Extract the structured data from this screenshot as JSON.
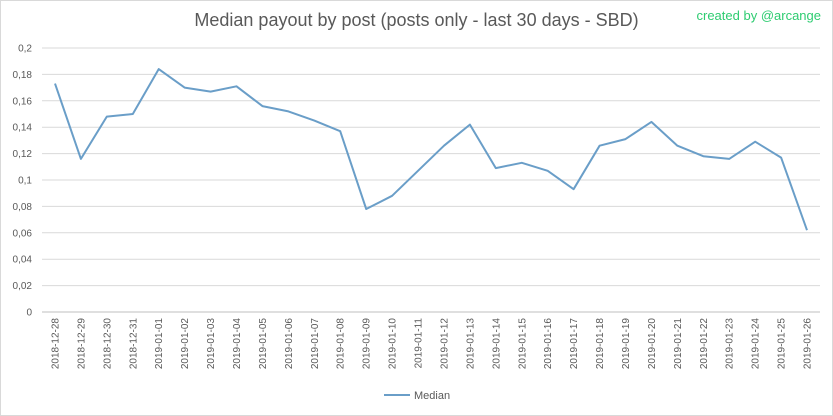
{
  "credit": "created by @arcange",
  "chart_data": {
    "type": "line",
    "title": "Median payout by post (posts only - last 30 days - SBD)",
    "xlabel": "",
    "ylabel": "",
    "ylim": [
      0,
      0.2
    ],
    "y_ticks": [
      "0",
      "0,02",
      "0,04",
      "0,06",
      "0,08",
      "0,1",
      "0,12",
      "0,14",
      "0,16",
      "0,18",
      "0,2"
    ],
    "grid": true,
    "legend_position": "bottom",
    "line_color": "#6a9ec8",
    "categories": [
      "2018-12-28",
      "2018-12-29",
      "2018-12-30",
      "2018-12-31",
      "2019-01-01",
      "2019-01-02",
      "2019-01-03",
      "2019-01-04",
      "2019-01-05",
      "2019-01-06",
      "2019-01-07",
      "2019-01-08",
      "2019-01-09",
      "2019-01-10",
      "2019-01-11",
      "2019-01-12",
      "2019-01-13",
      "2019-01-14",
      "2019-01-15",
      "2019-01-16",
      "2019-01-17",
      "2019-01-18",
      "2019-01-19",
      "2019-01-20",
      "2019-01-21",
      "2019-01-22",
      "2019-01-23",
      "2019-01-24",
      "2019-01-25",
      "2019-01-26"
    ],
    "series": [
      {
        "name": "Median",
        "values": [
          0.173,
          0.116,
          0.148,
          0.15,
          0.184,
          0.17,
          0.167,
          0.171,
          0.156,
          0.152,
          0.145,
          0.137,
          0.078,
          0.088,
          0.107,
          0.126,
          0.142,
          0.109,
          0.113,
          0.107,
          0.093,
          0.126,
          0.131,
          0.144,
          0.126,
          0.118,
          0.116,
          0.129,
          0.117,
          0.062
        ]
      }
    ]
  }
}
